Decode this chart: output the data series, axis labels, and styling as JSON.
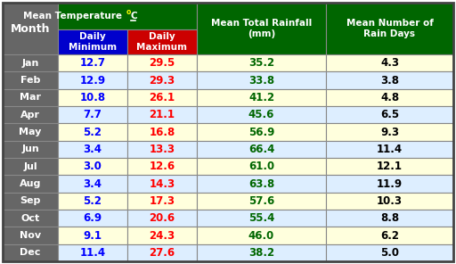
{
  "months": [
    "Jan",
    "Feb",
    "Mar",
    "Apr",
    "May",
    "Jun",
    "Jul",
    "Aug",
    "Sep",
    "Oct",
    "Nov",
    "Dec"
  ],
  "daily_min": [
    12.7,
    12.9,
    10.8,
    7.7,
    5.2,
    3.4,
    3.0,
    3.4,
    5.2,
    6.9,
    9.1,
    11.4
  ],
  "daily_max": [
    29.5,
    29.3,
    26.1,
    21.1,
    16.8,
    13.3,
    12.6,
    14.3,
    17.3,
    20.6,
    24.3,
    27.6
  ],
  "rainfall": [
    35.2,
    33.8,
    41.2,
    45.6,
    56.9,
    66.4,
    61.0,
    63.8,
    57.6,
    55.4,
    46.0,
    38.2
  ],
  "rain_days": [
    4.3,
    3.8,
    4.8,
    6.5,
    9.3,
    11.4,
    12.1,
    11.9,
    10.3,
    8.8,
    6.2,
    5.0
  ],
  "header_bg": "#006600",
  "header_text": "#FFFFFF",
  "min_header_bg": "#0000CC",
  "max_header_bg": "#CC0000",
  "row_bg_odd": "#FFFFDD",
  "row_bg_even": "#DDEEFF",
  "month_col_bg": "#666666",
  "month_col_text": "#FFFFFF",
  "min_text_color": "#0000FF",
  "max_text_color": "#FF0000",
  "rainfall_text_color": "#006600",
  "rain_days_text_color": "#000000",
  "border_color": "#888888",
  "outer_border_color": "#444444",
  "superscript_color": "#FFFF00"
}
